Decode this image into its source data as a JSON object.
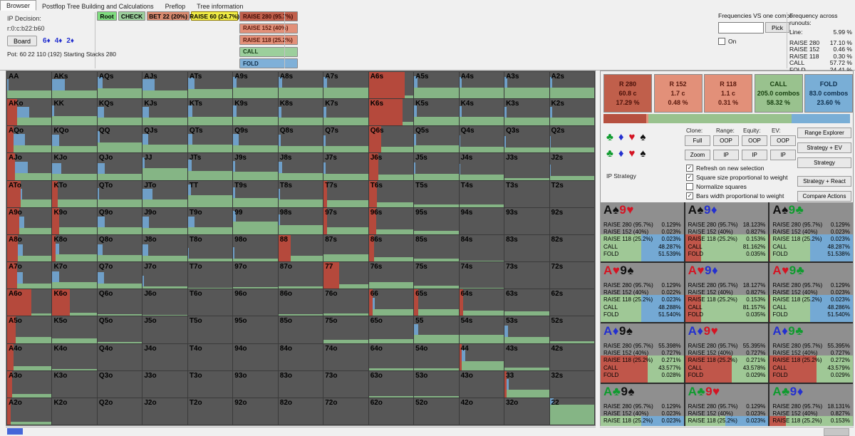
{
  "window": {
    "bg": "#f0f0f0"
  },
  "tabs": [
    {
      "label": "Browser",
      "active": true
    },
    {
      "label": "Postflop Tree Building and Calculations",
      "active": false
    },
    {
      "label": "Preflop",
      "active": false
    },
    {
      "label": "Tree information",
      "active": false
    }
  ],
  "decision": {
    "title": "IP Decision:",
    "line": "r:0:c:b22:b60",
    "board_button": "Board",
    "board_cards": [
      [
        "6",
        "♦"
      ],
      [
        "4",
        "♦"
      ],
      [
        "2",
        "♦"
      ]
    ],
    "pot_line": "Pot: 60 22 110 (192) Starting Stacks 280"
  },
  "actions": {
    "root": {
      "label": "Root",
      "color": "#7fdc7f"
    },
    "check": {
      "label": "CHECK",
      "color": "#9ccf9c"
    },
    "bet": {
      "label": "BET 22 (20%)",
      "color": "#d98a6f"
    },
    "raise_selected": {
      "label": "RAISE 60 (24.7%)",
      "color": "#f0ec45"
    },
    "stack": [
      {
        "label": "RAISE 280 (95.7%)",
        "color": "#c05f4b",
        "text": "#3d0b05"
      },
      {
        "label": "RAISE 152 (40%)",
        "color": "#e29079",
        "text": "#5a190d"
      },
      {
        "label": "RAISE 118 (25.2%)",
        "color": "#e29079",
        "text": "#5a190d"
      },
      {
        "label": "CALL",
        "color": "#9ccf9c",
        "text": "#143a14"
      },
      {
        "label": "FOLD",
        "color": "#7fb0d8",
        "text": "#0f2b45"
      }
    ]
  },
  "freq_vs_combo": {
    "label": "Frequencies VS one combo:",
    "input_value": "",
    "pick_label": "Pick",
    "on_label": "On",
    "on_checked": false
  },
  "runouts": {
    "title": "Frequency across runouts:",
    "line_label": "Line:",
    "line_value": "5.99 %",
    "rows": [
      {
        "label": "RAISE 280",
        "value": "17.10 %"
      },
      {
        "label": "RAISE 152",
        "value": "0.46 %"
      },
      {
        "label": "RAISE 118",
        "value": "0.30 %"
      },
      {
        "label": "CALL",
        "value": "57.72 %"
      },
      {
        "label": "FOLD",
        "value": "24.41 %"
      }
    ]
  },
  "summary": {
    "boxes": [
      {
        "title": "R 280",
        "line1": "60.8 c",
        "line2": "17.29 %",
        "color": "#c05f4b",
        "text": "#4a1008"
      },
      {
        "title": "R 152",
        "line1": "1.7 c",
        "line2": "0.48 %",
        "color": "#e29079",
        "text": "#5a190d"
      },
      {
        "title": "R 118",
        "line1": "1.1 c",
        "line2": "0.31 %",
        "color": "#e29079",
        "text": "#5a190d"
      },
      {
        "title": "CALL",
        "line1": "205.0 combos",
        "line2": "58.32 %",
        "color": "#99c28e",
        "text": "#17400f"
      },
      {
        "title": "FOLD",
        "line1": "83.0 combos",
        "line2": "23.60 %",
        "color": "#79aed6",
        "text": "#0e2f4d"
      }
    ],
    "bar": [
      {
        "color": "#b6503f",
        "w": 17.3
      },
      {
        "color": "#e29079",
        "w": 0.8
      },
      {
        "color": "#99c28e",
        "w": 58.3
      },
      {
        "color": "#79aed6",
        "w": 23.6
      }
    ]
  },
  "controls": {
    "suit_rows": [
      [
        "♣",
        "♦",
        "♥",
        "♠"
      ],
      [
        "♣",
        "♦",
        "♥",
        "♠"
      ]
    ],
    "suit_colors": {
      "♣": "#0f9b2e",
      "♦": "#2430cf",
      "♥": "#d41423",
      "♠": "#101010"
    },
    "column_labels": [
      "Clone:",
      "Range:",
      "Equity:",
      "EV:"
    ],
    "button_rows": [
      [
        "Full",
        "OOP",
        "OOP",
        "OOP"
      ],
      [
        "Zoom",
        "IP",
        "IP",
        "IP"
      ]
    ],
    "side_buttons": [
      "Range Explorer",
      "Strategy + EV",
      "Strategy",
      "Strategy + React",
      "Compare Actions"
    ],
    "ip_strategy_label": "IP Strategy",
    "checkboxes": [
      {
        "label": "Refresh on new selection",
        "checked": true
      },
      {
        "label": "Square size proportional to weight",
        "checked": true
      },
      {
        "label": "Normalize squares",
        "checked": false
      },
      {
        "label": "Bars width proportional to weight",
        "checked": true
      }
    ]
  },
  "combo_grid": {
    "row_labels": [
      "RAISE 280 (95.7%)",
      "RAISE 152 (40%)",
      "RAISE 118 (25.2%)",
      "CALL",
      "FOLD"
    ],
    "colors": {
      "raise": "#c0564a",
      "call": "#9fc896",
      "fold": "#74a9d4"
    },
    "cells": [
      {
        "cards": [
          [
            "A",
            "♠"
          ],
          [
            "9",
            "♥"
          ]
        ],
        "values": [
          "0.129%",
          "0.023%",
          "0.023%",
          "48.287%",
          "51.539%"
        ]
      },
      {
        "cards": [
          [
            "A",
            "♠"
          ],
          [
            "9",
            "♦"
          ]
        ],
        "values": [
          "18.123%",
          "0.827%",
          "0.153%",
          "81.162%",
          "0.035%"
        ]
      },
      {
        "cards": [
          [
            "A",
            "♠"
          ],
          [
            "9",
            "♣"
          ]
        ],
        "values": [
          "0.129%",
          "0.023%",
          "0.023%",
          "48.287%",
          "51.538%"
        ]
      },
      {
        "cards": [
          [
            "A",
            "♥"
          ],
          [
            "9",
            "♠"
          ]
        ],
        "values": [
          "0.129%",
          "0.022%",
          "0.023%",
          "48.288%",
          "51.540%"
        ]
      },
      {
        "cards": [
          [
            "A",
            "♥"
          ],
          [
            "9",
            "♦"
          ]
        ],
        "values": [
          "18.127%",
          "0.827%",
          "0.153%",
          "81.157%",
          "0.035%"
        ]
      },
      {
        "cards": [
          [
            "A",
            "♥"
          ],
          [
            "9",
            "♣"
          ]
        ],
        "values": [
          "0.129%",
          "0.023%",
          "0.023%",
          "48.286%",
          "51.540%"
        ]
      },
      {
        "cards": [
          [
            "A",
            "♦"
          ],
          [
            "9",
            "♠"
          ]
        ],
        "values": [
          "55.398%",
          "0.727%",
          "0.271%",
          "43.577%",
          "0.028%"
        ]
      },
      {
        "cards": [
          [
            "A",
            "♦"
          ],
          [
            "9",
            "♥"
          ]
        ],
        "values": [
          "55.395%",
          "0.727%",
          "0.271%",
          "43.578%",
          "0.029%"
        ]
      },
      {
        "cards": [
          [
            "A",
            "♦"
          ],
          [
            "9",
            "♣"
          ]
        ],
        "values": [
          "55.395%",
          "0.727%",
          "0.272%",
          "43.579%",
          "0.029%"
        ]
      },
      {
        "cards": [
          [
            "A",
            "♣"
          ],
          [
            "9",
            "♠"
          ]
        ],
        "values": [
          "0.129%",
          "0.023%",
          "0.023%",
          "48.288%",
          "51.540%"
        ]
      },
      {
        "cards": [
          [
            "A",
            "♣"
          ],
          [
            "9",
            "♥"
          ]
        ],
        "values": [
          "0.129%",
          "0.023%",
          "0.023%",
          "48.288%",
          "51.540%"
        ]
      },
      {
        "cards": [
          [
            "A",
            "♣"
          ],
          [
            "9",
            "♦"
          ]
        ],
        "values": [
          "18.131%",
          "0.827%",
          "0.153%",
          "81.154%",
          "0.035%"
        ]
      }
    ]
  },
  "hand_grid": {
    "colors": {
      "base": "#575757",
      "raise": "#b5493c",
      "call": "#85b585",
      "fold": "#6f9fc8"
    },
    "cells": [
      [
        "AA",
        0,
        30,
        3
      ],
      [
        "AKs",
        0,
        30,
        28
      ],
      [
        "AQs",
        0,
        38,
        12
      ],
      [
        "AJs",
        0,
        30,
        26
      ],
      [
        "ATs",
        0,
        36,
        14
      ],
      [
        "A9s",
        0,
        40,
        8
      ],
      [
        "A8s",
        0,
        40,
        8
      ],
      [
        "A7s",
        0,
        40,
        8
      ],
      [
        "A6s",
        80,
        12,
        0
      ],
      [
        "A5s",
        0,
        42,
        8
      ],
      [
        "A4s",
        0,
        40,
        6
      ],
      [
        "A3s",
        0,
        40,
        6
      ],
      [
        "A2s",
        0,
        40,
        6
      ],
      [
        "AKo",
        22,
        30,
        28
      ],
      [
        "KK",
        0,
        35,
        4
      ],
      [
        "KQs",
        0,
        30,
        14
      ],
      [
        "KJs",
        0,
        30,
        14
      ],
      [
        "KTs",
        0,
        34,
        10
      ],
      [
        "K9s",
        0,
        34,
        8
      ],
      [
        "K8s",
        0,
        30,
        6
      ],
      [
        "K7s",
        0,
        30,
        6
      ],
      [
        "K6s",
        75,
        15,
        0
      ],
      [
        "K5s",
        0,
        33,
        6
      ],
      [
        "K4s",
        0,
        32,
        5
      ],
      [
        "K3s",
        0,
        30,
        5
      ],
      [
        "K2s",
        0,
        30,
        5
      ],
      [
        "AQo",
        14,
        28,
        26
      ],
      [
        "KQo",
        0,
        26,
        16
      ],
      [
        "QQ",
        0,
        40,
        5
      ],
      [
        "QJs",
        0,
        30,
        13
      ],
      [
        "QTs",
        0,
        30,
        10
      ],
      [
        "Q9s",
        0,
        28,
        12
      ],
      [
        "Q8s",
        0,
        26,
        5
      ],
      [
        "Q7s",
        0,
        25,
        4
      ],
      [
        "Q6s",
        28,
        24,
        0
      ],
      [
        "Q5s",
        0,
        28,
        4
      ],
      [
        "Q4s",
        0,
        24,
        3
      ],
      [
        "Q3s",
        0,
        20,
        3
      ],
      [
        "Q2s",
        0,
        20,
        3
      ],
      [
        "AJo",
        18,
        26,
        28
      ],
      [
        "KJo",
        0,
        22,
        20
      ],
      [
        "QJo",
        0,
        22,
        16
      ],
      [
        "JJ",
        0,
        44,
        4
      ],
      [
        "JTs",
        0,
        34,
        8
      ],
      [
        "J9s",
        0,
        30,
        4
      ],
      [
        "J8s",
        0,
        26,
        8
      ],
      [
        "J7s",
        0,
        24,
        4
      ],
      [
        "J6s",
        22,
        20,
        0
      ],
      [
        "J5s",
        0,
        24,
        3
      ],
      [
        "J4s",
        0,
        20,
        2
      ],
      [
        "J3s",
        0,
        6,
        0
      ],
      [
        "J2s",
        0,
        16,
        2
      ],
      [
        "ATo",
        30,
        28,
        4
      ],
      [
        "KTo",
        12,
        30,
        0
      ],
      [
        "QTo",
        0,
        30,
        4
      ],
      [
        "JTo",
        0,
        28,
        22
      ],
      [
        "TT",
        0,
        44,
        6
      ],
      [
        "T9s",
        0,
        34,
        4
      ],
      [
        "T8s",
        0,
        28,
        3
      ],
      [
        "T7s",
        8,
        26,
        0
      ],
      [
        "T6s",
        18,
        18,
        0
      ],
      [
        "T5s",
        0,
        10,
        0
      ],
      [
        "T4s",
        0,
        10,
        0
      ],
      [
        "T3s",
        0,
        0,
        0
      ],
      [
        "T2s",
        0,
        0,
        0
      ],
      [
        "A9o",
        28,
        24,
        10
      ],
      [
        "K9o",
        16,
        28,
        0
      ],
      [
        "Q9o",
        0,
        26,
        16
      ],
      [
        "J9o",
        0,
        24,
        14
      ],
      [
        "T9o",
        0,
        26,
        14
      ],
      [
        "99",
        0,
        48,
        6
      ],
      [
        "98s",
        0,
        34,
        3
      ],
      [
        "97s",
        8,
        26,
        0
      ],
      [
        "96s",
        16,
        18,
        0
      ],
      [
        "95s",
        0,
        12,
        0
      ],
      [
        "94s",
        0,
        0,
        0
      ],
      [
        "93s",
        0,
        0,
        0
      ],
      [
        "92s",
        0,
        0,
        0
      ],
      [
        "A8o",
        24,
        22,
        12
      ],
      [
        "K8o",
        8,
        26,
        8
      ],
      [
        "Q8o",
        0,
        24,
        12
      ],
      [
        "J8o",
        0,
        22,
        12
      ],
      [
        "T8o",
        0,
        10,
        2
      ],
      [
        "98o",
        0,
        12,
        2
      ],
      [
        "88",
        28,
        22,
        0
      ],
      [
        "87s",
        0,
        28,
        0
      ],
      [
        "86s",
        12,
        16,
        0
      ],
      [
        "85s",
        0,
        10,
        0
      ],
      [
        "84s",
        0,
        4,
        0
      ],
      [
        "83s",
        0,
        0,
        0
      ],
      [
        "82s",
        0,
        0,
        0
      ],
      [
        "A7o",
        22,
        20,
        14
      ],
      [
        "K7o",
        0,
        24,
        16
      ],
      [
        "Q7o",
        0,
        20,
        14
      ],
      [
        "J7o",
        0,
        8,
        2
      ],
      [
        "T7o",
        0,
        4,
        0
      ],
      [
        "97o",
        0,
        6,
        0
      ],
      [
        "87o",
        0,
        8,
        0
      ],
      [
        "77",
        35,
        18,
        0
      ],
      [
        "76s",
        0,
        24,
        0
      ],
      [
        "75s",
        0,
        12,
        0
      ],
      [
        "74s",
        0,
        4,
        0
      ],
      [
        "73s",
        0,
        0,
        0
      ],
      [
        "72s",
        0,
        0,
        0
      ],
      [
        "A6o",
        55,
        10,
        0
      ],
      [
        "K6o",
        40,
        12,
        0
      ],
      [
        "Q6o",
        0,
        6,
        0
      ],
      [
        "J6o",
        0,
        4,
        0
      ],
      [
        "T6o",
        0,
        2,
        0
      ],
      [
        "96o",
        0,
        0,
        0
      ],
      [
        "86o",
        0,
        6,
        0
      ],
      [
        "76o",
        0,
        10,
        0
      ],
      [
        "66",
        8,
        26,
        6
      ],
      [
        "65s",
        10,
        24,
        0
      ],
      [
        "64s",
        8,
        20,
        0
      ],
      [
        "63s",
        0,
        18,
        0
      ],
      [
        "62s",
        0,
        0,
        0
      ],
      [
        "A5o",
        20,
        22,
        0
      ],
      [
        "K5o",
        0,
        18,
        0
      ],
      [
        "Q5o",
        0,
        4,
        0
      ],
      [
        "J5o",
        0,
        0,
        0
      ],
      [
        "T5o",
        0,
        0,
        0
      ],
      [
        "95o",
        0,
        0,
        0
      ],
      [
        "85o",
        0,
        0,
        0
      ],
      [
        "75o",
        0,
        12,
        0
      ],
      [
        "65o",
        0,
        16,
        0
      ],
      [
        "55",
        0,
        30,
        10
      ],
      [
        "54s",
        0,
        30,
        0
      ],
      [
        "53s",
        0,
        24,
        8
      ],
      [
        "52s",
        0,
        6,
        0
      ],
      [
        "A4o",
        14,
        16,
        0
      ],
      [
        "K4o",
        0,
        4,
        0
      ],
      [
        "Q4o",
        0,
        0,
        0
      ],
      [
        "J4o",
        0,
        0,
        0
      ],
      [
        "T4o",
        0,
        0,
        0
      ],
      [
        "94o",
        0,
        0,
        0
      ],
      [
        "84o",
        0,
        0,
        0
      ],
      [
        "74o",
        0,
        0,
        0
      ],
      [
        "64o",
        0,
        6,
        0
      ],
      [
        "54o",
        0,
        8,
        0
      ],
      [
        "44",
        6,
        34,
        8
      ],
      [
        "43s",
        0,
        10,
        0
      ],
      [
        "42s",
        0,
        0,
        0
      ],
      [
        "A3o",
        12,
        12,
        0
      ],
      [
        "K3o",
        0,
        0,
        0
      ],
      [
        "Q3o",
        0,
        0,
        0
      ],
      [
        "J3o",
        0,
        0,
        0
      ],
      [
        "T3o",
        0,
        0,
        0
      ],
      [
        "93o",
        0,
        0,
        0
      ],
      [
        "83o",
        0,
        0,
        0
      ],
      [
        "73o",
        0,
        0,
        0
      ],
      [
        "63o",
        0,
        4,
        0
      ],
      [
        "53o",
        0,
        4,
        0
      ],
      [
        "43o",
        0,
        0,
        0
      ],
      [
        "33",
        4,
        28,
        6
      ],
      [
        "32s",
        0,
        0,
        0
      ],
      [
        "A2o",
        8,
        10,
        0
      ],
      [
        "K2o",
        0,
        0,
        0
      ],
      [
        "Q2o",
        0,
        0,
        0
      ],
      [
        "J2o",
        0,
        0,
        0
      ],
      [
        "T2o",
        0,
        0,
        0
      ],
      [
        "92o",
        0,
        0,
        0
      ],
      [
        "82o",
        0,
        0,
        0
      ],
      [
        "72o",
        0,
        0,
        0
      ],
      [
        "62o",
        0,
        0,
        0
      ],
      [
        "52o",
        0,
        0,
        0
      ],
      [
        "42o",
        0,
        0,
        0
      ],
      [
        "32o",
        0,
        0,
        0
      ],
      [
        "22",
        0,
        75,
        8
      ]
    ]
  }
}
